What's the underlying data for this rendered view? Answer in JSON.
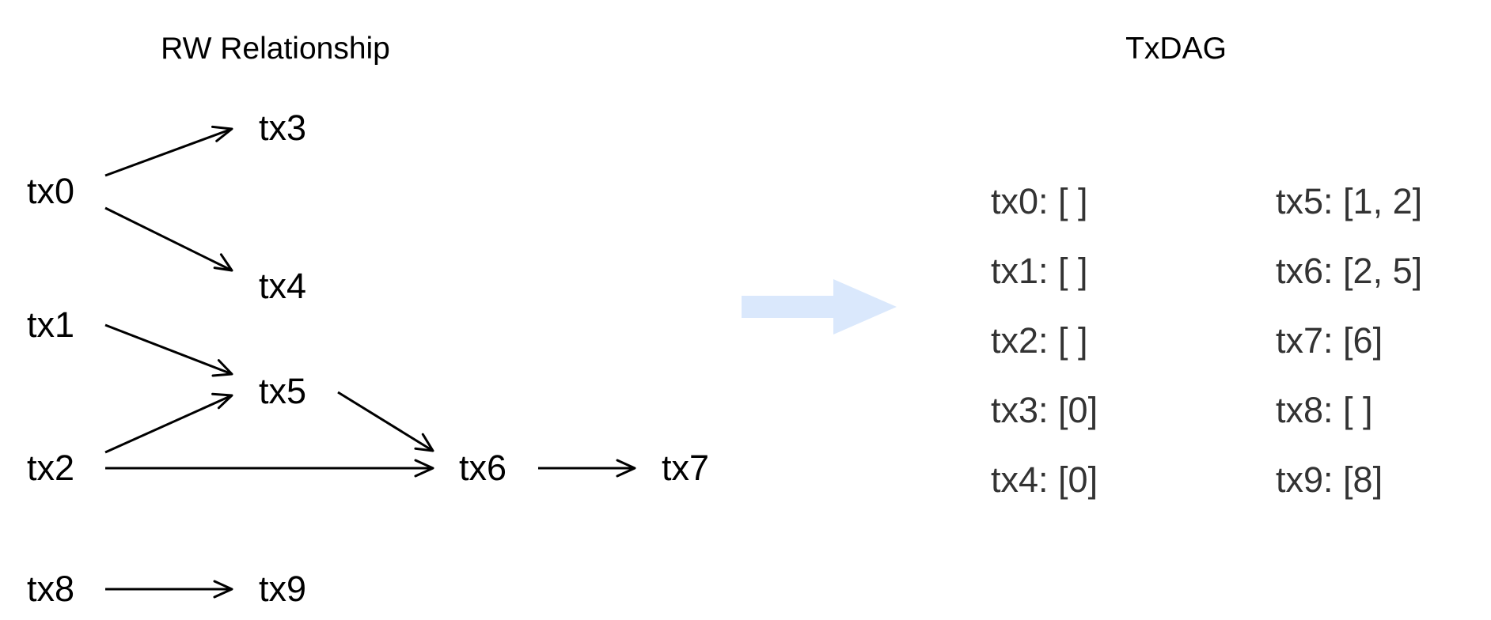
{
  "left_title": "RW Relationship",
  "right_title": "TxDAG",
  "nodes": {
    "tx0": "tx0",
    "tx1": "tx1",
    "tx2": "tx2",
    "tx3": "tx3",
    "tx4": "tx4",
    "tx5": "tx5",
    "tx6": "tx6",
    "tx7": "tx7",
    "tx8": "tx8",
    "tx9": "tx9"
  },
  "edges": [
    {
      "from": "tx0",
      "to": "tx3"
    },
    {
      "from": "tx0",
      "to": "tx4"
    },
    {
      "from": "tx1",
      "to": "tx5"
    },
    {
      "from": "tx2",
      "to": "tx5"
    },
    {
      "from": "tx2",
      "to": "tx6"
    },
    {
      "from": "tx5",
      "to": "tx6"
    },
    {
      "from": "tx6",
      "to": "tx7"
    },
    {
      "from": "tx8",
      "to": "tx9"
    }
  ],
  "txdag": {
    "left": [
      "tx0: [ ]",
      "tx1: [ ]",
      "tx2: [ ]",
      "tx3: [0]",
      "tx4: [0]"
    ],
    "right": [
      "tx5: [1, 2]",
      "tx6: [2, 5]",
      "tx7: [6]",
      "tx8: [ ]",
      "tx9: [8]"
    ]
  },
  "colors": {
    "transform_arrow": "#dae8fc",
    "dag_text": "#333333",
    "edge": "#000000"
  }
}
